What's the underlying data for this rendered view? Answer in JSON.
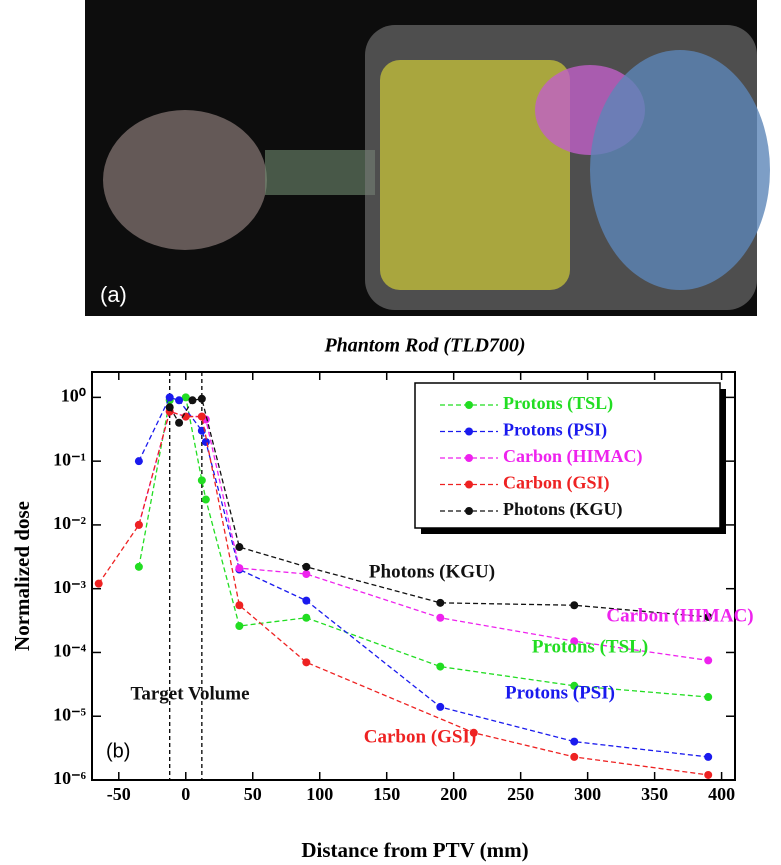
{
  "image": {
    "label": "(a)"
  },
  "chart_data": {
    "type": "line",
    "title": "Phantom Rod (TLD700)",
    "xlabel": "Distance from PTV (mm)",
    "ylabel": "Normalized dose",
    "panel_label": "(b)",
    "log_y": true,
    "xlim": [
      -70,
      410
    ],
    "xticks": [
      -50,
      0,
      50,
      100,
      150,
      200,
      250,
      300,
      350,
      400
    ],
    "ylim": [
      1e-06,
      2.5
    ],
    "yticks": [
      {
        "value": 1e-06,
        "label": "10⁻⁶"
      },
      {
        "value": 1e-05,
        "label": "10⁻⁵"
      },
      {
        "value": 0.0001,
        "label": "10⁻⁴"
      },
      {
        "value": 0.001,
        "label": "10⁻³"
      },
      {
        "value": 0.01,
        "label": "10⁻²"
      },
      {
        "value": 0.1,
        "label": "10⁻¹"
      },
      {
        "value": 1,
        "label": "10⁰"
      }
    ],
    "target_lines": [
      -12,
      12
    ],
    "legend": "upper right",
    "series": [
      {
        "name": "Protons (TSL)",
        "color": "#22dd22",
        "x": [
          -35,
          -12,
          0,
          12,
          15,
          40,
          90,
          190,
          290,
          390
        ],
        "values": [
          0.0022,
          0.9,
          1.0,
          0.05,
          0.025,
          0.00026,
          0.00035,
          6e-05,
          3e-05,
          2e-05
        ]
      },
      {
        "name": "Protons (PSI)",
        "color": "#1a1aee",
        "x": [
          -35,
          -12,
          -5,
          12,
          15,
          40,
          90,
          190,
          290,
          390
        ],
        "values": [
          0.1,
          1.0,
          0.9,
          0.3,
          0.2,
          0.002,
          0.00065,
          1.4e-05,
          4e-06,
          2.3e-06
        ]
      },
      {
        "name": "Carbon (HIMAC)",
        "color": "#ee22ee",
        "x": [
          -35,
          -12,
          0,
          12,
          15,
          40,
          90,
          190,
          290,
          390
        ],
        "values": [
          0.01,
          0.6,
          0.5,
          0.5,
          0.45,
          0.0021,
          0.0017,
          0.00035,
          0.00015,
          7.5e-05
        ]
      },
      {
        "name": "Carbon (GSI)",
        "color": "#ee2222",
        "x": [
          -65,
          -35,
          -12,
          0,
          12,
          40,
          90,
          215,
          290,
          390
        ],
        "values": [
          0.0012,
          0.01,
          0.6,
          0.5,
          0.5,
          0.00055,
          7e-05,
          5.5e-06,
          2.3e-06,
          1.2e-06
        ]
      },
      {
        "name": "Photons (KGU)",
        "color": "#111111",
        "x": [
          -12,
          -5,
          5,
          12,
          40,
          90,
          190,
          290,
          390
        ],
        "values": [
          0.7,
          0.4,
          0.9,
          0.95,
          0.0045,
          0.0022,
          0.0006,
          0.00055,
          0.00036
        ]
      }
    ],
    "annotations": [
      {
        "text": "Photons (KGU)",
        "color": "#111111"
      },
      {
        "text": "Carbon (HIMAC)",
        "color": "#ee22ee"
      },
      {
        "text": "Protons (TSL)",
        "color": "#22dd22"
      },
      {
        "text": "Protons (PSI)",
        "color": "#1a1aee"
      },
      {
        "text": "Target Volume",
        "color": "#111111"
      },
      {
        "text": "Carbon (GSI)",
        "color": "#ee2222"
      }
    ]
  }
}
